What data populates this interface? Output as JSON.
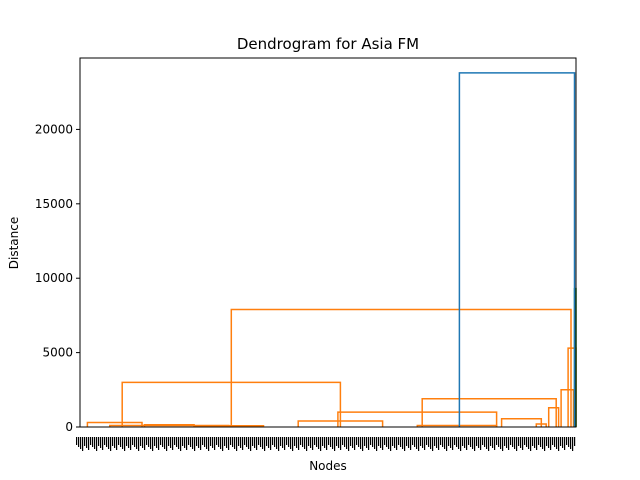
{
  "chart_data": {
    "type": "dendrogram",
    "title": "Dendrogram for Asia FM",
    "xlabel": "Nodes",
    "ylabel": "Distance",
    "ylim": [
      0,
      24800
    ],
    "yticks": [
      0,
      5000,
      10000,
      15000,
      20000
    ],
    "grid": false,
    "legend": "none",
    "colors": {
      "cluster_1": "#ff7f0e",
      "cluster_2": "#2ca02c",
      "root": "#1f77b4",
      "axis": "#000000"
    },
    "leaf_count": "many (labels overlap into a dense band)",
    "leaves_span": [
      0,
      100
    ],
    "merges": [
      {
        "left": 1.5,
        "right": 12.5,
        "height": 300,
        "color": "#ff7f0e"
      },
      {
        "left": 13,
        "right": 23,
        "height": 150,
        "color": "#ff7f0e"
      },
      {
        "left": 23,
        "right": 37,
        "height": 80,
        "color": "#ff7f0e"
      },
      {
        "left": 6,
        "right": 30,
        "height": 100,
        "color": "#ff7f0e"
      },
      {
        "left": 44,
        "right": 61,
        "height": 400,
        "color": "#ff7f0e"
      },
      {
        "left": 68,
        "right": 84,
        "height": 100,
        "color": "#ff7f0e"
      },
      {
        "left": 85,
        "right": 93,
        "height": 550,
        "color": "#ff7f0e"
      },
      {
        "left": 92,
        "right": 94,
        "height": 200,
        "color": "#ff7f0e"
      },
      {
        "left": 94.5,
        "right": 96.5,
        "height": 1300,
        "color": "#ff7f0e"
      },
      {
        "left": 8.5,
        "right": 52.5,
        "height": 3000,
        "color": "#ff7f0e"
      },
      {
        "left": 52,
        "right": 84,
        "height": 1000,
        "color": "#ff7f0e"
      },
      {
        "left": 69,
        "right": 96,
        "height": 1900,
        "color": "#ff7f0e"
      },
      {
        "left": 30.5,
        "right": 99,
        "height": 7900,
        "color": "#ff7f0e"
      },
      {
        "left": 97,
        "right": 99.5,
        "height": 2500,
        "color": "#ff7f0e"
      },
      {
        "left": 98.4,
        "right": 100,
        "height": 5300,
        "color": "#ff7f0e"
      },
      {
        "left": 99.7,
        "right": 100,
        "height": 9300,
        "color": "#2ca02c"
      },
      {
        "left": 76.5,
        "right": 99.7,
        "height": 23800,
        "color": "#1f77b4"
      }
    ]
  }
}
